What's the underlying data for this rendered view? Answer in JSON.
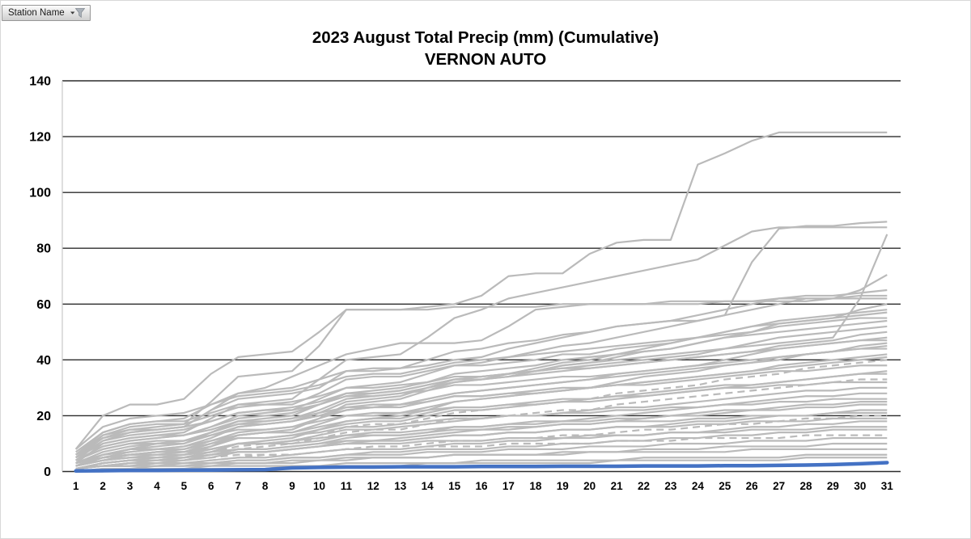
{
  "filter_button": {
    "label": "Station Name",
    "icon": "filter-funnel-icon"
  },
  "title": {
    "line1": "2023 August Total Precip (mm) (Cumulative)",
    "line2": "VERNON AUTO"
  },
  "chart_data": {
    "type": "line",
    "title": "2023 August Total Precip (mm) (Cumulative)",
    "subtitle": "VERNON AUTO",
    "xlabel": "",
    "ylabel": "",
    "categories": [
      1,
      2,
      3,
      4,
      5,
      6,
      7,
      8,
      9,
      10,
      11,
      12,
      13,
      14,
      15,
      16,
      17,
      18,
      19,
      20,
      21,
      22,
      23,
      24,
      25,
      26,
      27,
      28,
      29,
      30,
      31
    ],
    "ylim": [
      0,
      140
    ],
    "yticks": [
      0,
      20,
      40,
      60,
      80,
      100,
      120,
      140
    ],
    "grid": "horizontal",
    "legend_position": "none",
    "colors": {
      "highlight": "#4472C4",
      "other": "#BABABA",
      "gridline": "#2B2B2B",
      "plot_border": "#C7C7C7",
      "text": "#000000"
    },
    "highlighted_series": {
      "name": "VERNON AUTO",
      "values": [
        0.2,
        0.3,
        0.4,
        0.4,
        0.5,
        0.5,
        0.6,
        0.7,
        1.3,
        1.5,
        1.6,
        1.6,
        1.7,
        1.7,
        1.7,
        1.8,
        1.8,
        1.8,
        1.9,
        1.9,
        1.9,
        2,
        2,
        2,
        2.1,
        2.1,
        2.2,
        2.3,
        2.5,
        2.8,
        3.2
      ]
    },
    "other_series_values": [
      [
        8,
        20,
        24,
        24,
        26,
        35,
        41,
        42,
        43,
        50,
        58,
        58,
        58,
        59,
        60,
        63,
        70,
        71,
        71,
        78,
        82,
        83,
        83,
        110,
        114,
        118.5,
        121.5,
        121.5,
        121.5,
        121.5,
        121.5
      ],
      [
        5,
        13,
        15,
        15,
        16,
        22,
        26,
        27,
        28,
        30,
        36,
        37,
        37,
        38,
        40,
        41,
        44,
        46,
        48,
        50,
        52,
        53,
        54,
        54,
        56,
        75,
        87,
        88,
        88,
        89,
        89.5
      ],
      [
        3,
        10,
        12,
        13,
        14,
        19,
        24,
        25,
        26,
        33,
        40,
        41,
        42,
        48,
        55,
        58,
        62,
        64,
        66,
        68,
        70,
        72,
        74,
        76,
        81,
        86,
        87.5,
        87.5,
        87.5,
        87.5,
        87.5
      ],
      [
        2,
        6,
        8,
        9,
        10,
        14,
        17,
        18,
        19,
        22,
        26,
        27,
        28,
        30,
        32,
        33,
        35,
        36,
        38,
        39,
        40,
        41,
        42,
        43,
        44,
        45,
        46,
        47,
        48,
        62,
        85
      ],
      [
        4,
        9,
        11,
        12,
        13,
        16,
        20,
        21,
        22,
        26,
        30,
        31,
        32,
        35,
        38,
        39,
        41,
        43,
        45,
        46,
        48,
        50,
        52,
        54,
        56,
        58,
        60,
        62,
        62,
        65,
        70.5
      ],
      [
        6,
        14,
        17,
        18,
        19,
        24,
        28,
        29,
        30,
        33,
        36,
        36,
        37,
        40,
        43,
        44,
        46,
        47,
        49,
        50,
        52,
        53,
        54,
        56,
        58,
        60,
        62,
        63,
        63,
        64,
        65
      ],
      [
        5,
        12,
        15,
        16,
        17,
        25,
        34,
        35,
        36,
        45,
        58,
        58,
        58,
        58,
        59,
        59,
        59,
        59,
        60,
        60,
        60,
        60,
        60,
        60,
        61,
        61,
        62,
        62,
        62,
        63,
        63
      ],
      [
        4,
        11,
        14,
        15,
        16,
        22,
        28,
        30,
        34,
        38,
        42,
        44,
        46,
        46,
        46,
        47,
        52,
        58,
        59,
        60,
        60,
        60,
        61,
        61,
        61,
        61,
        61,
        61,
        62,
        62,
        62
      ],
      [
        3,
        6,
        8,
        10,
        11,
        14,
        18,
        19,
        20,
        24,
        28,
        29,
        30,
        32,
        35,
        36,
        37,
        38,
        40,
        41,
        42,
        43,
        44,
        46,
        48,
        50,
        53,
        54,
        55,
        58,
        60
      ],
      [
        6,
        13,
        16,
        17,
        17,
        20,
        23,
        24,
        24,
        28,
        33,
        34,
        34,
        36,
        38,
        38,
        39,
        40,
        42,
        42,
        44,
        45,
        46,
        48,
        50,
        52,
        54,
        55,
        56,
        57,
        58
      ],
      [
        2,
        5,
        7,
        8,
        9,
        12,
        16,
        17,
        18,
        21,
        25,
        26,
        27,
        30,
        33,
        34,
        35,
        37,
        39,
        40,
        42,
        44,
        46,
        48,
        50,
        52,
        53,
        54,
        55,
        56,
        57
      ],
      [
        8,
        16,
        19,
        20,
        21,
        24,
        27,
        28,
        29,
        31,
        34,
        35,
        35,
        37,
        39,
        40,
        41,
        42,
        43,
        44,
        45,
        46,
        47,
        48,
        49,
        50,
        52,
        53,
        54,
        55,
        55
      ],
      [
        1,
        3,
        4,
        5,
        6,
        9,
        13,
        14,
        15,
        19,
        24,
        25,
        26,
        29,
        32,
        33,
        34,
        36,
        38,
        39,
        41,
        43,
        44,
        46,
        48,
        49,
        50,
        51,
        52,
        53,
        54
      ],
      [
        4,
        9,
        11,
        12,
        13,
        16,
        19,
        20,
        21,
        24,
        27,
        28,
        29,
        31,
        33,
        34,
        35,
        36,
        37,
        38,
        39,
        40,
        41,
        42,
        44,
        46,
        48,
        49,
        50,
        51,
        52
      ],
      [
        5,
        11,
        13,
        14,
        15,
        18,
        21,
        22,
        23,
        25,
        28,
        28,
        29,
        31,
        33,
        33,
        34,
        35,
        36,
        37,
        38,
        39,
        40,
        41,
        42,
        43,
        45,
        46,
        47,
        49,
        50
      ],
      [
        2,
        5,
        6,
        7,
        8,
        11,
        14,
        15,
        16,
        19,
        22,
        23,
        24,
        26,
        28,
        29,
        30,
        31,
        32,
        33,
        35,
        36,
        37,
        38,
        40,
        42,
        44,
        45,
        46,
        47,
        48
      ],
      [
        7,
        14,
        17,
        18,
        18,
        21,
        24,
        24,
        25,
        27,
        30,
        30,
        31,
        32,
        34,
        34,
        35,
        36,
        37,
        37,
        38,
        39,
        40,
        41,
        42,
        43,
        44,
        45,
        46,
        47,
        47
      ],
      [
        3,
        7,
        9,
        10,
        10,
        13,
        16,
        17,
        18,
        20,
        23,
        24,
        24,
        26,
        28,
        29,
        30,
        31,
        32,
        33,
        34,
        35,
        36,
        37,
        38,
        39,
        41,
        42,
        43,
        45,
        46
      ],
      [
        1,
        2,
        3,
        4,
        5,
        7,
        10,
        11,
        12,
        15,
        18,
        19,
        20,
        22,
        25,
        26,
        27,
        28,
        29,
        30,
        32,
        34,
        35,
        36,
        38,
        39,
        40,
        42,
        43,
        44,
        45
      ],
      [
        6,
        12,
        14,
        15,
        16,
        18,
        21,
        22,
        22,
        24,
        27,
        27,
        28,
        29,
        31,
        31,
        32,
        33,
        34,
        34,
        35,
        36,
        37,
        38,
        39,
        40,
        41,
        42,
        43,
        44,
        44
      ],
      [
        2,
        4,
        6,
        7,
        7,
        10,
        13,
        14,
        14,
        17,
        20,
        21,
        21,
        23,
        25,
        26,
        27,
        28,
        29,
        30,
        31,
        32,
        33,
        34,
        35,
        36,
        38,
        39,
        40,
        41,
        42
      ],
      [
        4,
        8,
        10,
        11,
        11,
        14,
        17,
        17,
        18,
        20,
        22,
        23,
        23,
        25,
        27,
        27,
        28,
        29,
        30,
        30,
        31,
        32,
        33,
        34,
        35,
        36,
        37,
        38,
        39,
        40,
        41
      ],
      [
        1,
        3,
        4,
        4,
        5,
        7,
        9,
        10,
        11,
        13,
        16,
        17,
        17,
        19,
        21,
        22,
        23,
        24,
        25,
        26,
        28,
        29,
        30,
        31,
        33,
        34,
        35,
        37,
        38,
        39,
        40
      ],
      [
        5,
        10,
        12,
        13,
        13,
        15,
        18,
        18,
        19,
        21,
        23,
        23,
        24,
        25,
        27,
        27,
        28,
        28,
        29,
        30,
        31,
        31,
        32,
        33,
        34,
        35,
        36,
        36,
        37,
        38,
        38
      ],
      [
        2,
        5,
        6,
        7,
        7,
        9,
        12,
        12,
        13,
        15,
        17,
        18,
        18,
        20,
        22,
        22,
        23,
        24,
        25,
        25,
        26,
        27,
        28,
        29,
        30,
        31,
        32,
        33,
        34,
        35,
        36
      ],
      [
        3,
        6,
        8,
        8,
        9,
        11,
        13,
        14,
        14,
        16,
        18,
        19,
        19,
        21,
        23,
        23,
        24,
        25,
        26,
        26,
        27,
        28,
        29,
        30,
        31,
        31,
        32,
        33,
        34,
        35,
        35
      ],
      [
        1,
        2,
        3,
        3,
        4,
        6,
        8,
        9,
        10,
        12,
        14,
        15,
        15,
        17,
        19,
        19,
        20,
        21,
        22,
        22,
        24,
        25,
        26,
        27,
        28,
        29,
        30,
        31,
        32,
        33,
        33
      ],
      [
        4,
        8,
        10,
        10,
        11,
        13,
        15,
        15,
        16,
        18,
        20,
        20,
        21,
        22,
        23,
        23,
        24,
        24,
        25,
        26,
        27,
        27,
        28,
        29,
        30,
        30,
        31,
        31,
        32,
        32,
        32
      ],
      [
        2,
        4,
        5,
        6,
        6,
        8,
        10,
        10,
        11,
        13,
        15,
        15,
        16,
        17,
        18,
        19,
        20,
        20,
        21,
        22,
        23,
        23,
        24,
        25,
        26,
        27,
        28,
        29,
        29,
        30,
        30
      ],
      [
        1,
        3,
        4,
        4,
        5,
        6,
        8,
        8,
        9,
        10,
        12,
        13,
        13,
        14,
        16,
        16,
        17,
        18,
        18,
        19,
        20,
        21,
        22,
        23,
        24,
        25,
        26,
        27,
        27,
        28,
        28
      ],
      [
        3,
        6,
        7,
        8,
        8,
        10,
        12,
        12,
        13,
        14,
        16,
        16,
        17,
        18,
        19,
        19,
        20,
        20,
        21,
        21,
        22,
        22,
        23,
        23,
        24,
        24,
        25,
        25,
        26,
        26,
        26
      ],
      [
        1,
        2,
        3,
        3,
        4,
        5,
        7,
        7,
        8,
        9,
        11,
        11,
        12,
        13,
        14,
        15,
        15,
        16,
        17,
        17,
        18,
        19,
        20,
        21,
        22,
        22,
        23,
        24,
        24,
        25,
        25
      ],
      [
        2,
        5,
        6,
        6,
        7,
        8,
        10,
        10,
        11,
        12,
        13,
        14,
        14,
        15,
        16,
        16,
        17,
        17,
        18,
        18,
        19,
        19,
        20,
        20,
        21,
        22,
        22,
        23,
        23,
        24,
        24
      ],
      [
        1,
        3,
        4,
        4,
        4,
        6,
        7,
        7,
        8,
        9,
        10,
        11,
        11,
        12,
        13,
        13,
        14,
        14,
        15,
        15,
        16,
        16,
        17,
        18,
        18,
        19,
        20,
        20,
        21,
        22,
        22
      ],
      [
        3,
        5,
        6,
        7,
        7,
        8,
        10,
        10,
        10,
        11,
        13,
        13,
        13,
        14,
        15,
        15,
        16,
        16,
        17,
        17,
        18,
        18,
        18,
        19,
        19,
        20,
        20,
        20,
        21,
        21,
        21
      ],
      [
        1,
        2,
        2,
        3,
        3,
        4,
        5,
        6,
        6,
        7,
        8,
        9,
        9,
        10,
        11,
        11,
        12,
        12,
        13,
        13,
        14,
        15,
        15,
        16,
        17,
        17,
        18,
        19,
        19,
        20,
        20
      ],
      [
        2,
        4,
        5,
        5,
        6,
        7,
        8,
        8,
        9,
        10,
        11,
        11,
        11,
        12,
        13,
        13,
        14,
        14,
        15,
        15,
        16,
        16,
        16,
        17,
        17,
        18,
        18,
        18,
        19,
        19,
        19
      ],
      [
        1,
        2,
        3,
        3,
        3,
        4,
        5,
        5,
        6,
        7,
        8,
        8,
        8,
        9,
        10,
        10,
        11,
        11,
        12,
        12,
        13,
        13,
        14,
        14,
        15,
        16,
        16,
        17,
        17,
        18,
        18
      ],
      [
        2,
        4,
        5,
        5,
        5,
        6,
        7,
        7,
        8,
        9,
        10,
        10,
        10,
        11,
        11,
        11,
        12,
        12,
        12,
        13,
        13,
        13,
        14,
        14,
        14,
        15,
        15,
        15,
        16,
        16,
        16
      ],
      [
        1,
        2,
        2,
        2,
        3,
        3,
        4,
        4,
        5,
        5,
        6,
        7,
        7,
        8,
        8,
        8,
        9,
        9,
        10,
        10,
        11,
        11,
        12,
        12,
        13,
        13,
        14,
        14,
        15,
        15,
        15
      ],
      [
        1,
        3,
        4,
        4,
        4,
        5,
        6,
        6,
        6,
        7,
        8,
        8,
        8,
        9,
        9,
        9,
        10,
        10,
        10,
        10,
        11,
        11,
        11,
        12,
        12,
        12,
        12,
        13,
        13,
        13,
        13
      ],
      [
        1,
        2,
        2,
        3,
        3,
        3,
        4,
        4,
        5,
        5,
        6,
        6,
        6,
        7,
        7,
        7,
        8,
        8,
        8,
        9,
        9,
        9,
        10,
        10,
        10,
        11,
        11,
        11,
        12,
        12,
        12
      ],
      [
        0,
        1,
        1,
        2,
        2,
        2,
        3,
        3,
        3,
        4,
        4,
        5,
        5,
        5,
        6,
        6,
        6,
        6,
        7,
        7,
        7,
        8,
        8,
        8,
        9,
        9,
        9,
        9,
        10,
        10,
        10
      ],
      [
        1,
        2,
        2,
        2,
        2,
        3,
        3,
        3,
        4,
        4,
        5,
        5,
        5,
        5,
        6,
        6,
        6,
        6,
        6,
        7,
        7,
        7,
        7,
        7,
        7,
        8,
        8,
        8,
        8,
        8,
        8
      ],
      [
        0,
        1,
        1,
        1,
        1,
        2,
        2,
        2,
        2,
        2,
        3,
        3,
        3,
        3,
        3,
        4,
        4,
        4,
        4,
        4,
        4,
        5,
        5,
        5,
        5,
        5,
        5,
        6,
        6,
        6,
        6
      ],
      [
        0,
        0,
        1,
        1,
        1,
        1,
        1,
        1,
        2,
        2,
        2,
        2,
        2,
        3,
        3,
        3,
        3,
        3,
        3,
        3,
        4,
        4,
        4,
        4,
        4,
        4,
        4,
        5,
        5,
        5,
        5
      ]
    ],
    "dashed_series_indices": [
      22,
      26,
      35,
      40
    ]
  }
}
